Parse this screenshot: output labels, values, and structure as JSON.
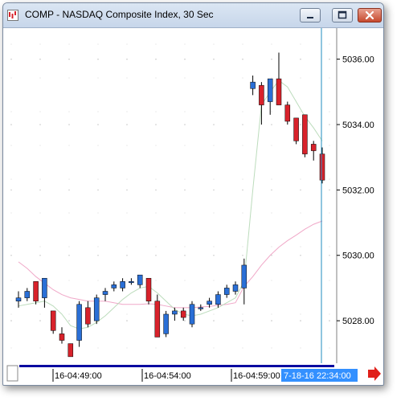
{
  "window": {
    "title": "COMP - NASDAQ Composite Index, 30 Sec"
  },
  "colors": {
    "up": "#2a6fd6",
    "down": "#d8222b",
    "wick": "#000000",
    "ma_fast": "#bcdcbc",
    "ma_slow": "#f0a8c8",
    "cursor": "#1f8cbf",
    "highlight": "#3390ff",
    "arrow": "#e0201a",
    "scrollbar": "#0a0aa0"
  },
  "time_axis": {
    "labels": [
      "16-04:49:00",
      "16-04:54:00",
      "16-04:59:00"
    ],
    "cursor_label": "7-18-16 22:34:00"
  },
  "chart_data": {
    "type": "candlestick",
    "y_axis": {
      "ticks": [
        "5036.00",
        "5034.00",
        "5032.00",
        "5030.00",
        "5028.00"
      ],
      "tick_values": [
        5036,
        5034,
        5032,
        5030,
        5028
      ],
      "range": [
        5026.7,
        5036.95
      ]
    },
    "candles": [
      {
        "o": 5028.6,
        "h": 5028.9,
        "l": 5028.4,
        "c": 5028.7
      },
      {
        "o": 5028.7,
        "h": 5029.0,
        "l": 5028.6,
        "c": 5028.9
      },
      {
        "o": 5029.2,
        "h": 5029.2,
        "l": 5028.5,
        "c": 5028.6
      },
      {
        "o": 5028.7,
        "h": 5029.3,
        "l": 5028.4,
        "c": 5029.3
      },
      {
        "o": 5028.3,
        "h": 5028.3,
        "l": 5027.6,
        "c": 5027.7
      },
      {
        "o": 5027.6,
        "h": 5027.8,
        "l": 5027.3,
        "c": 5027.4
      },
      {
        "o": 5027.3,
        "h": 5027.3,
        "l": 5027.0,
        "c": 5026.9
      },
      {
        "o": 5027.4,
        "h": 5028.6,
        "l": 5027.2,
        "c": 5028.5
      },
      {
        "o": 5028.4,
        "h": 5028.6,
        "l": 5027.8,
        "c": 5027.9
      },
      {
        "o": 5028.0,
        "h": 5028.8,
        "l": 5027.9,
        "c": 5028.7
      },
      {
        "o": 5028.8,
        "h": 5029.0,
        "l": 5028.6,
        "c": 5028.9
      },
      {
        "o": 5029.0,
        "h": 5029.2,
        "l": 5028.9,
        "c": 5029.1
      },
      {
        "o": 5029.0,
        "h": 5029.3,
        "l": 5028.9,
        "c": 5029.2
      },
      {
        "o": 5029.2,
        "h": 5029.3,
        "l": 5029.1,
        "c": 5029.2
      },
      {
        "o": 5029.1,
        "h": 5029.4,
        "l": 5029.0,
        "c": 5029.4
      },
      {
        "o": 5029.3,
        "h": 5029.3,
        "l": 5028.5,
        "c": 5028.6
      },
      {
        "o": 5028.6,
        "h": 5028.8,
        "l": 5027.5,
        "c": 5027.5
      },
      {
        "o": 5027.6,
        "h": 5028.3,
        "l": 5027.5,
        "c": 5028.2
      },
      {
        "o": 5028.2,
        "h": 5028.4,
        "l": 5028.0,
        "c": 5028.3
      },
      {
        "o": 5028.3,
        "h": 5028.4,
        "l": 5028.0,
        "c": 5028.1
      },
      {
        "o": 5027.9,
        "h": 5028.6,
        "l": 5027.8,
        "c": 5028.5
      },
      {
        "o": 5028.4,
        "h": 5028.5,
        "l": 5028.3,
        "c": 5028.4
      },
      {
        "o": 5028.5,
        "h": 5028.7,
        "l": 5028.4,
        "c": 5028.6
      },
      {
        "o": 5028.5,
        "h": 5028.9,
        "l": 5028.4,
        "c": 5028.8
      },
      {
        "o": 5028.8,
        "h": 5029.1,
        "l": 5028.7,
        "c": 5029.0
      },
      {
        "o": 5028.9,
        "h": 5029.2,
        "l": 5028.8,
        "c": 5029.1
      },
      {
        "o": 5029.0,
        "h": 5029.9,
        "l": 5028.5,
        "c": 5029.7
      },
      {
        "o": 5035.1,
        "h": 5035.5,
        "l": 5034.9,
        "c": 5035.3
      },
      {
        "o": 5035.2,
        "h": 5035.3,
        "l": 5034.0,
        "c": 5034.6
      },
      {
        "o": 5034.7,
        "h": 5035.4,
        "l": 5034.3,
        "c": 5035.4
      },
      {
        "o": 5035.4,
        "h": 5036.2,
        "l": 5034.6,
        "c": 5034.6
      },
      {
        "o": 5034.6,
        "h": 5034.7,
        "l": 5034.0,
        "c": 5034.1
      },
      {
        "o": 5034.2,
        "h": 5034.2,
        "l": 5033.4,
        "c": 5033.5
      },
      {
        "o": 5034.3,
        "h": 5034.3,
        "l": 5033.0,
        "c": 5033.1
      },
      {
        "o": 5033.4,
        "h": 5033.5,
        "l": 5032.9,
        "c": 5033.2
      },
      {
        "o": 5033.1,
        "h": 5033.3,
        "l": 5032.2,
        "c": 5032.3
      }
    ],
    "ma_fast": [
      5028.45,
      5028.5,
      5028.55,
      5028.6,
      5028.45,
      5028.2,
      5027.85,
      5027.75,
      5027.8,
      5027.95,
      5028.15,
      5028.4,
      5028.65,
      5028.85,
      5029.0,
      5029.05,
      5028.85,
      5028.6,
      5028.35,
      5028.2,
      5028.15,
      5028.2,
      5028.3,
      5028.4,
      5028.55,
      5028.7,
      5029.2,
      5032.0,
      5034.6,
      5035.0,
      5035.35,
      5035.15,
      5034.7,
      5034.25,
      5033.9,
      5033.5
    ],
    "ma_slow": [
      5029.8,
      5029.6,
      5029.35,
      5029.15,
      5028.95,
      5028.8,
      5028.7,
      5028.65,
      5028.6,
      5028.6,
      5028.6,
      5028.55,
      5028.5,
      5028.5,
      5028.5,
      5028.52,
      5028.5,
      5028.45,
      5028.4,
      5028.4,
      5028.4,
      5028.42,
      5028.44,
      5028.47,
      5028.5,
      5028.55,
      5029.05,
      5029.35,
      5029.7,
      5030.0,
      5030.25,
      5030.45,
      5030.62,
      5030.8,
      5030.95,
      5031.05
    ]
  }
}
